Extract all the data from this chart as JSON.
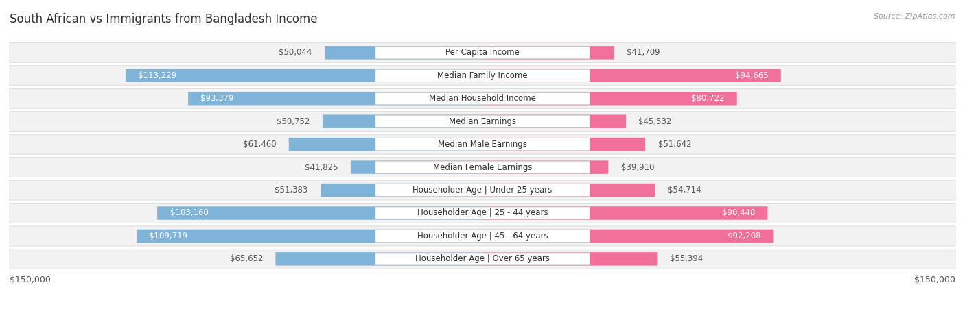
{
  "title": "South African vs Immigrants from Bangladesh Income",
  "source": "Source: ZipAtlas.com",
  "categories": [
    "Per Capita Income",
    "Median Family Income",
    "Median Household Income",
    "Median Earnings",
    "Median Male Earnings",
    "Median Female Earnings",
    "Householder Age | Under 25 years",
    "Householder Age | 25 - 44 years",
    "Householder Age | 45 - 64 years",
    "Householder Age | Over 65 years"
  ],
  "south_african": [
    50044,
    113229,
    93379,
    50752,
    61460,
    41825,
    51383,
    103160,
    109719,
    65652
  ],
  "bangladesh": [
    41709,
    94665,
    80722,
    45532,
    51642,
    39910,
    54714,
    90448,
    92208,
    55394
  ],
  "max_val": 150000,
  "blue_color": "#7fb3d8",
  "pink_color": "#f07099",
  "row_bg_color": "#f2f2f2",
  "center_box_color": "#ffffff",
  "center_box_border": "#cccccc",
  "title_color": "#333333",
  "source_color": "#999999",
  "title_fontsize": 12,
  "label_fontsize": 8.5,
  "category_fontsize": 8.5,
  "axis_fontsize": 9,
  "inside_threshold": 60000
}
